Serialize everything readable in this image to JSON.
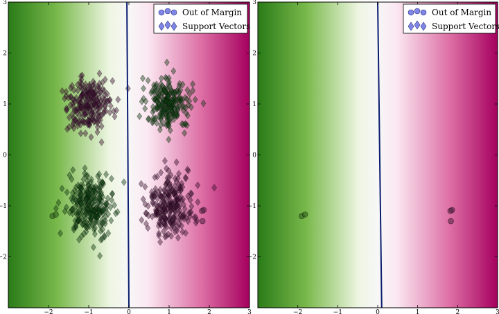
{
  "chart_data": [
    {
      "type": "scatter",
      "title": "",
      "xlabel": "",
      "ylabel": "",
      "xlim": [
        -3,
        3
      ],
      "ylim": [
        -3,
        3
      ],
      "xticks": [
        -2,
        -1,
        0,
        1,
        2,
        3
      ],
      "yticks": [
        -2,
        -1,
        0,
        1,
        2,
        3
      ],
      "tick_labels_x": [
        "−2",
        "−1",
        "0",
        "1",
        "2",
        "3"
      ],
      "tick_labels_y": [
        "−2",
        "−1",
        "0",
        "1",
        "2",
        "3"
      ],
      "background": "decision-function gradient, green (negative x) to magenta (positive x)",
      "decision_boundary": [
        {
          "x": -0.05,
          "y": 3
        },
        {
          "x": 0.0,
          "y": -3
        }
      ],
      "legend": {
        "placement": "top-right",
        "entries": [
          "Out of Margin",
          "Support Vectors"
        ]
      },
      "clusters": [
        {
          "center": [
            -1,
            1
          ],
          "sd": 0.28,
          "count": 230,
          "color": "#3d1234",
          "marker": "diamond"
        },
        {
          "center": [
            1,
            1
          ],
          "sd": 0.28,
          "count": 230,
          "color": "#103d12",
          "marker": "diamond"
        },
        {
          "center": [
            -1,
            -1
          ],
          "sd": 0.3,
          "count": 260,
          "color": "#103d12",
          "marker": "diamond"
        },
        {
          "center": [
            1,
            -1
          ],
          "sd": 0.3,
          "count": 240,
          "color": "#3d1234",
          "marker": "diamond"
        }
      ],
      "out_of_margin_points": [
        {
          "x": -1.9,
          "y": -1.2
        },
        {
          "x": -1.82,
          "y": -1.17
        },
        {
          "x": 1.86,
          "y": -1.08
        },
        {
          "x": 1.82,
          "y": -1.1
        },
        {
          "x": 1.83,
          "y": -1.3
        }
      ]
    },
    {
      "type": "scatter",
      "title": "",
      "xlabel": "",
      "ylabel": "",
      "xlim": [
        -3,
        3
      ],
      "ylim": [
        -3,
        3
      ],
      "xticks": [
        -2,
        -1,
        0,
        1,
        2,
        3
      ],
      "yticks": [
        -2,
        -1,
        0,
        1,
        2,
        3
      ],
      "tick_labels_x": [
        "−2",
        "−1",
        "0",
        "1",
        "2",
        "3"
      ],
      "tick_labels_y": [
        "−2",
        "−1",
        "0",
        "1",
        "2",
        "3"
      ],
      "background": "decision-function gradient, green (negative x) to magenta (positive x)",
      "decision_boundary": [
        {
          "x": 0.0,
          "y": 3
        },
        {
          "x": 0.1,
          "y": -3
        }
      ],
      "legend": {
        "placement": "top-right",
        "entries": [
          "Out of Margin",
          "Support Vectors"
        ]
      },
      "clusters": [],
      "out_of_margin_points": [
        {
          "x": -1.9,
          "y": -1.2
        },
        {
          "x": -1.82,
          "y": -1.17
        },
        {
          "x": 1.86,
          "y": -1.08
        },
        {
          "x": 1.82,
          "y": -1.1
        },
        {
          "x": 1.83,
          "y": -1.3
        }
      ]
    }
  ],
  "colors": {
    "green_dark": "#2a7b18",
    "green_light": "#eef6e2",
    "magenta_light": "#fbe7f1",
    "magenta_dark": "#a5005e",
    "boundary": "#0a1d6f",
    "legend_marker": "#7f86e6"
  }
}
